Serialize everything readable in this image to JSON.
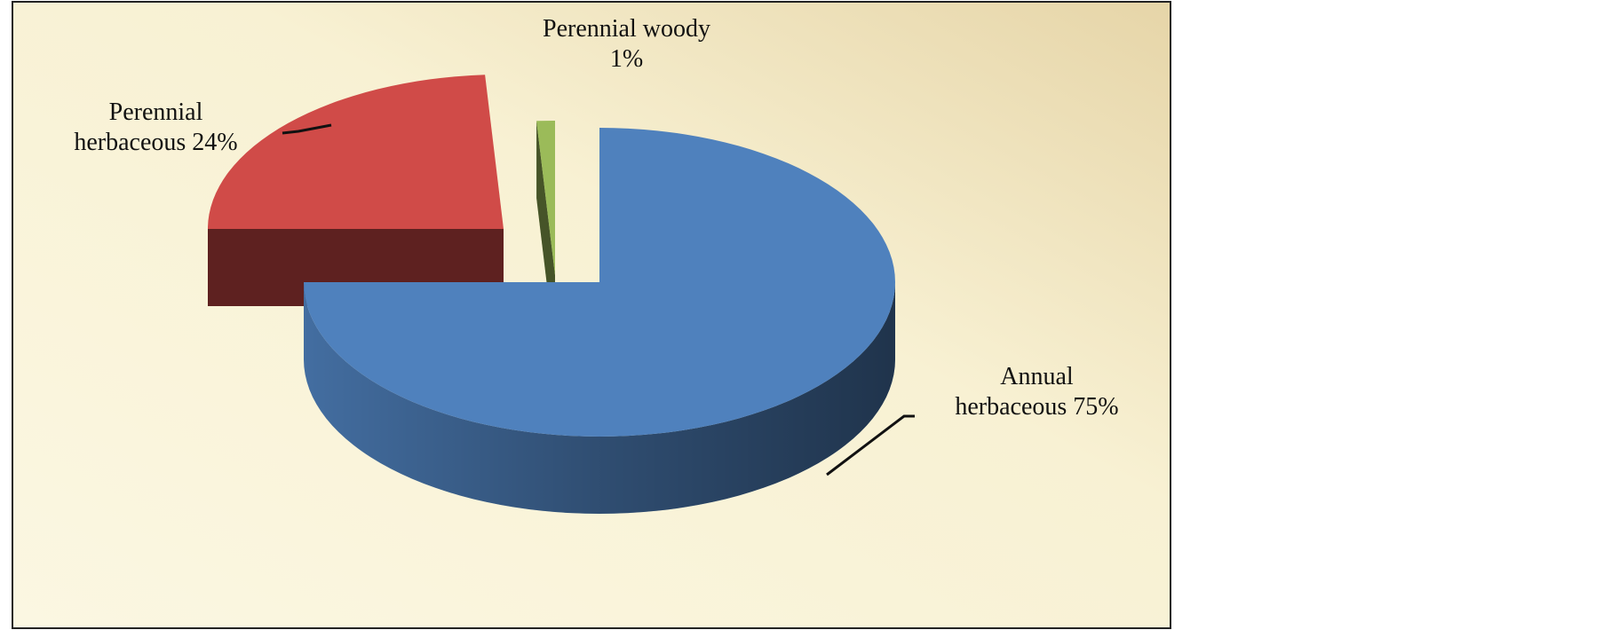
{
  "chart_data": {
    "type": "pie3d",
    "categories": [
      "Annual herbaceous",
      "Perennial herbaceous",
      "Perennial woody"
    ],
    "values": [
      75,
      24,
      1
    ],
    "value_labels": [
      "75%",
      "24%",
      "1%"
    ],
    "colors": [
      "#4f81bd",
      "#d04b48",
      "#9bbb59"
    ]
  }
}
